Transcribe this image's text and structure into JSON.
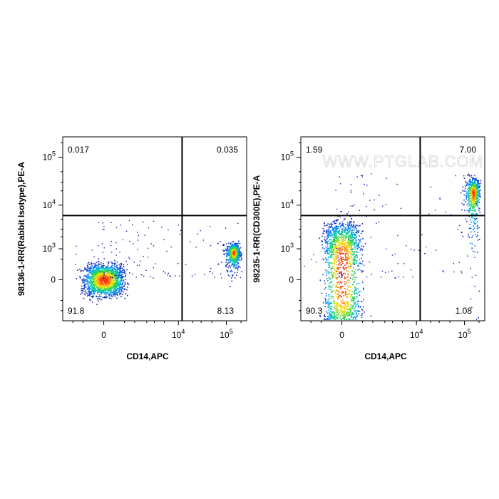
{
  "chart_data": [
    {
      "type": "scatter",
      "name": "left-panel",
      "xlabel": "CD14,APC",
      "ylabel": "98136-1-RR(Rabbit Isotype),PE-A",
      "x_ticks": [
        {
          "label": "0",
          "value": 0
        },
        {
          "label": "10",
          "sup": "4",
          "value": 10000
        },
        {
          "label": "10",
          "sup": "5",
          "value": 100000
        }
      ],
      "y_ticks": [
        {
          "label": "0",
          "value": 0
        },
        {
          "label": "10",
          "sup": "3",
          "value": 1000
        },
        {
          "label": "10",
          "sup": "4",
          "value": 10000
        },
        {
          "label": "10",
          "sup": "5",
          "value": 100000
        }
      ],
      "gate": {
        "x": 12000,
        "y": 6000
      },
      "quadrants": {
        "top_left": "0.017",
        "top_right": "0.035",
        "bottom_left": "91.8",
        "bottom_right": "8.13"
      },
      "populations": [
        {
          "cx": 0,
          "cy": 0,
          "sx": 220,
          "sy": 160,
          "n": 1500,
          "label": "CD14- negative cluster"
        },
        {
          "cx": 140000,
          "cy": 800,
          "sx": 22000,
          "sy": 300,
          "n": 600,
          "label": "CD14+ cluster"
        }
      ],
      "watermark": ""
    },
    {
      "type": "scatter",
      "name": "right-panel",
      "xlabel": "CD14,APC",
      "ylabel": "98235-1-RR(CD300E),PE-A",
      "x_ticks": [
        {
          "label": "0",
          "value": 0
        },
        {
          "label": "10",
          "sup": "4",
          "value": 10000
        },
        {
          "label": "10",
          "sup": "5",
          "value": 100000
        }
      ],
      "y_ticks": [
        {
          "label": "0",
          "value": 0
        },
        {
          "label": "10",
          "sup": "3",
          "value": 1000
        },
        {
          "label": "10",
          "sup": "4",
          "value": 10000
        },
        {
          "label": "10",
          "sup": "5",
          "value": 100000
        }
      ],
      "gate": {
        "x": 12000,
        "y": 6000
      },
      "quadrants": {
        "top_left": "1.59",
        "top_right": "7.00",
        "bottom_left": "90.3",
        "bottom_right": "1.08"
      },
      "populations": [
        {
          "cx": 0,
          "cy": 300,
          "sx": 200,
          "sy": 1800,
          "n": 1700,
          "label": "CD14- column"
        },
        {
          "cx": 150000,
          "cy": 18000,
          "sx": 25000,
          "sy": 9000,
          "n": 600,
          "label": "CD14+ CD300E+ cluster"
        }
      ],
      "watermark": "WWW.PTGLAB.COM"
    }
  ],
  "colors": {
    "low": "#1a1aa8",
    "mid": "#00c8c8",
    "high": "#ff2000",
    "gate": "#000000"
  }
}
